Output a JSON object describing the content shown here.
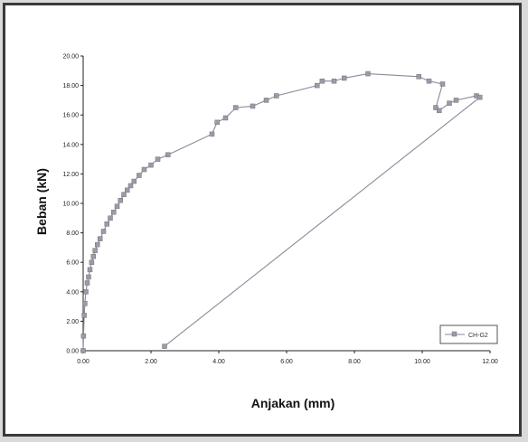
{
  "chart_data": {
    "type": "line",
    "xlabel": "Anjakan (mm)",
    "ylabel": "Beban (kN)",
    "xlim": [
      0,
      12
    ],
    "ylim": [
      0,
      20
    ],
    "x_ticks": [
      "0.00",
      "2.00",
      "4.00",
      "6.00",
      "8.00",
      "10.00",
      "12.00"
    ],
    "y_ticks": [
      "0.00",
      "2.00",
      "4.00",
      "6.00",
      "8.00",
      "10.00",
      "12.00",
      "14.00",
      "16.00",
      "18.00",
      "20.00"
    ],
    "grid": false,
    "legend_position": "bottom-right",
    "series": [
      {
        "name": "CH-G2",
        "color": "#8a8a9a",
        "marker": "square",
        "points": [
          [
            0.0,
            0.0
          ],
          [
            0.01,
            1.0
          ],
          [
            0.03,
            2.4
          ],
          [
            0.05,
            3.2
          ],
          [
            0.08,
            4.0
          ],
          [
            0.12,
            4.6
          ],
          [
            0.16,
            5.0
          ],
          [
            0.2,
            5.5
          ],
          [
            0.25,
            6.0
          ],
          [
            0.3,
            6.4
          ],
          [
            0.35,
            6.8
          ],
          [
            0.42,
            7.2
          ],
          [
            0.5,
            7.6
          ],
          [
            0.6,
            8.1
          ],
          [
            0.7,
            8.6
          ],
          [
            0.8,
            9.0
          ],
          [
            0.9,
            9.4
          ],
          [
            1.0,
            9.8
          ],
          [
            1.1,
            10.2
          ],
          [
            1.2,
            10.6
          ],
          [
            1.3,
            10.9
          ],
          [
            1.4,
            11.2
          ],
          [
            1.5,
            11.5
          ],
          [
            1.65,
            11.9
          ],
          [
            1.8,
            12.3
          ],
          [
            2.0,
            12.6
          ],
          [
            2.2,
            13.0
          ],
          [
            2.5,
            13.3
          ],
          [
            3.8,
            14.7
          ],
          [
            3.95,
            15.5
          ],
          [
            4.2,
            15.8
          ],
          [
            4.5,
            16.5
          ],
          [
            5.0,
            16.6
          ],
          [
            5.4,
            17.0
          ],
          [
            5.7,
            17.3
          ],
          [
            6.9,
            18.0
          ],
          [
            7.05,
            18.3
          ],
          [
            7.4,
            18.3
          ],
          [
            7.7,
            18.5
          ],
          [
            8.4,
            18.8
          ],
          [
            9.9,
            18.6
          ],
          [
            10.2,
            18.3
          ],
          [
            10.6,
            18.1
          ],
          [
            10.4,
            16.5
          ],
          [
            10.5,
            16.3
          ],
          [
            10.8,
            16.8
          ],
          [
            11.0,
            17.0
          ],
          [
            11.6,
            17.3
          ],
          [
            11.7,
            17.2
          ],
          [
            2.4,
            0.3
          ]
        ]
      }
    ]
  }
}
